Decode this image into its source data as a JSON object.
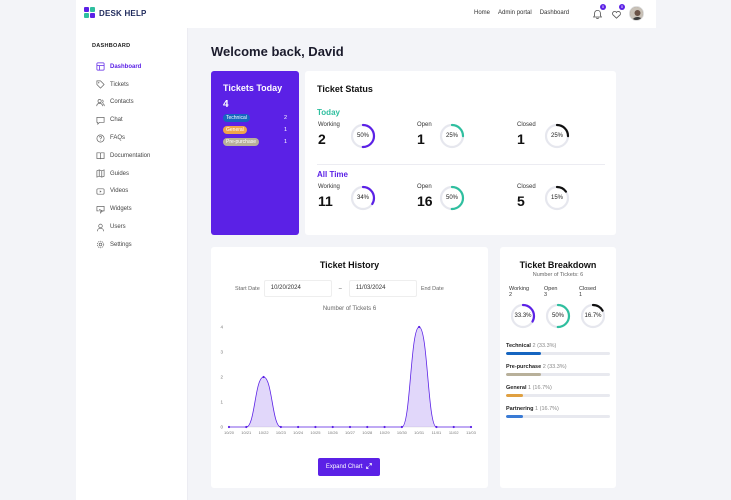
{
  "brand": {
    "name": "DESK HELP"
  },
  "nav": {
    "home": "Home",
    "admin": "Admin portal",
    "dashboard": "Dashboard"
  },
  "notifications": {
    "bell_count": "0",
    "heart_count": "0"
  },
  "sidebar": {
    "title": "DASHBOARD",
    "items": [
      {
        "label": "Dashboard",
        "icon": "dashboard-icon"
      },
      {
        "label": "Tickets",
        "icon": "tag-icon"
      },
      {
        "label": "Contacts",
        "icon": "users-icon"
      },
      {
        "label": "Chat",
        "icon": "chat-icon"
      },
      {
        "label": "FAQs",
        "icon": "question-icon"
      },
      {
        "label": "Documentation",
        "icon": "book-icon"
      },
      {
        "label": "Guides",
        "icon": "map-icon"
      },
      {
        "label": "Videos",
        "icon": "video-icon"
      },
      {
        "label": "Widgets",
        "icon": "widget-icon"
      },
      {
        "label": "Users",
        "icon": "user-icon"
      },
      {
        "label": "Settings",
        "icon": "gear-icon"
      }
    ]
  },
  "welcome": "Welcome back, David",
  "tickets_today": {
    "title": "Tickets Today",
    "count": "4",
    "categories": [
      {
        "label": "Technical",
        "value": "2",
        "color": "#1565c0"
      },
      {
        "label": "General",
        "value": "1",
        "color": "#f0a44b"
      },
      {
        "label": "Pre-purchase",
        "value": "1",
        "color": "#b8b09a"
      }
    ]
  },
  "status": {
    "title": "Ticket Status",
    "today": {
      "label": "Today",
      "items": [
        {
          "label": "Working",
          "value": "2",
          "pct": "50%",
          "frac": 0.5,
          "color": "#5b21e6"
        },
        {
          "label": "Open",
          "value": "1",
          "pct": "25%",
          "frac": 0.25,
          "color": "#2fbf9f"
        },
        {
          "label": "Closed",
          "value": "1",
          "pct": "25%",
          "frac": 0.25,
          "color": "#111111"
        }
      ]
    },
    "alltime": {
      "label": "All Time",
      "items": [
        {
          "label": "Working",
          "value": "11",
          "pct": "34%",
          "frac": 0.34,
          "color": "#5b21e6"
        },
        {
          "label": "Open",
          "value": "16",
          "pct": "50%",
          "frac": 0.5,
          "color": "#2fbf9f"
        },
        {
          "label": "Closed",
          "value": "5",
          "pct": "15%",
          "frac": 0.15,
          "color": "#111111"
        }
      ]
    }
  },
  "history": {
    "title": "Ticket History",
    "start_label": "Start Date",
    "start_value": "10/20/2024",
    "end_label": "End Date",
    "end_value": "11/03/2024",
    "separator": "–",
    "caption": "Number of Tickets 6",
    "expand_label": "Expand Chart"
  },
  "chart_data": {
    "type": "area",
    "x": [
      "10/20",
      "10/21",
      "10/22",
      "10/23",
      "10/24",
      "10/25",
      "10/26",
      "10/27",
      "10/28",
      "10/29",
      "10/30",
      "10/31",
      "11/01",
      "11/02",
      "11/03"
    ],
    "values": [
      0,
      0,
      2,
      0,
      0,
      0,
      0,
      0,
      0,
      0,
      0,
      4,
      0,
      0,
      0
    ],
    "yticks": [
      "0",
      "1",
      "2",
      "3",
      "4"
    ],
    "ylim": [
      0,
      4
    ],
    "title": "Number of Tickets 6",
    "color": "#5b21e6"
  },
  "breakdown": {
    "title": "Ticket Breakdown",
    "subtitle": "Number of Tickets: 6",
    "stats": [
      {
        "label": "Working",
        "value": "2",
        "pct": "33.3%",
        "frac": 0.333,
        "color": "#5b21e6"
      },
      {
        "label": "Open",
        "value": "3",
        "pct": "50%",
        "frac": 0.5,
        "color": "#2fbf9f"
      },
      {
        "label": "Closed",
        "value": "1",
        "pct": "16.7%",
        "frac": 0.167,
        "color": "#111111"
      }
    ],
    "rows": [
      {
        "label": "Technical",
        "detail": "2 (33.3%)",
        "frac": 0.333,
        "color": "#1565c0"
      },
      {
        "label": "Pre-purchase",
        "detail": "2 (33.3%)",
        "frac": 0.333,
        "color": "#b8b09a"
      },
      {
        "label": "General",
        "detail": "1 (16.7%)",
        "frac": 0.167,
        "color": "#e0a040"
      },
      {
        "label": "Partnering",
        "detail": "1 (16.7%)",
        "frac": 0.167,
        "color": "#3a7bd5"
      }
    ]
  }
}
